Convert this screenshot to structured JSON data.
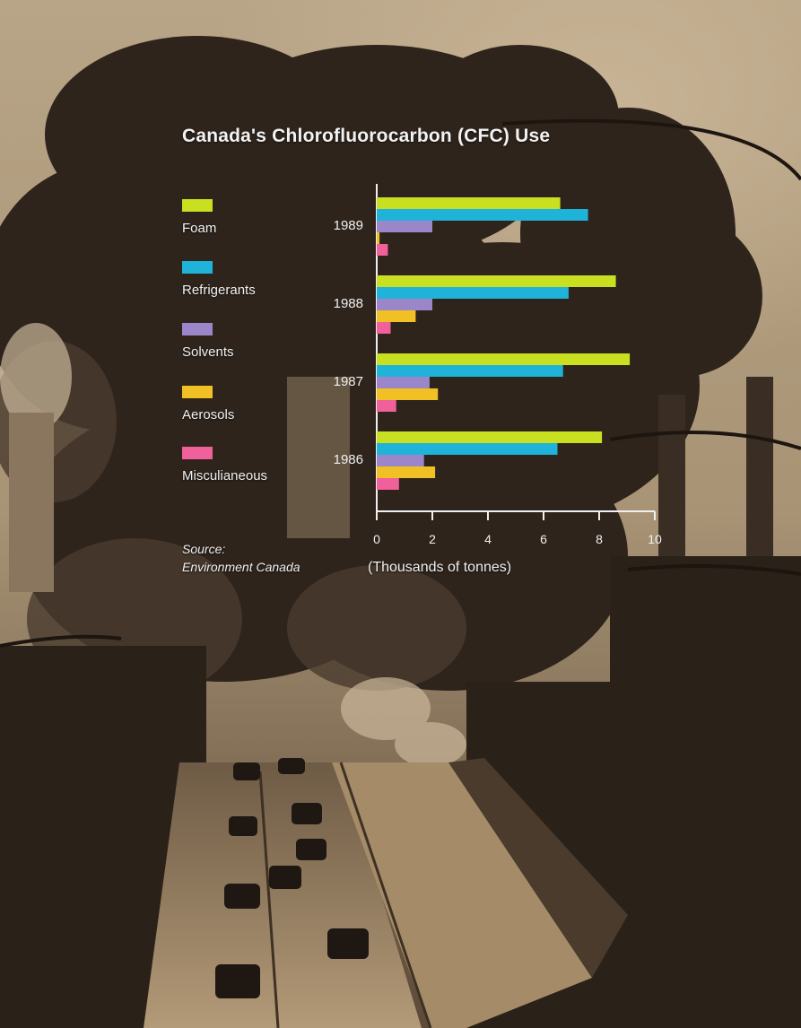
{
  "chart_data": {
    "type": "bar",
    "orientation": "horizontal",
    "title": "Canada's Chlorofluorocarbon (CFC) Use",
    "xlabel": "(Thousands of tonnes)",
    "ylabel": "",
    "xlim": [
      0,
      10
    ],
    "x_ticks": [
      "0",
      "2",
      "4",
      "6",
      "8",
      "10"
    ],
    "categories": [
      "1989",
      "1988",
      "1987",
      "1986"
    ],
    "series": [
      {
        "name": "Foam",
        "color": "#c9e021",
        "values": [
          6.6,
          8.6,
          9.1,
          8.1
        ]
      },
      {
        "name": "Refrigerants",
        "color": "#1fb3d9",
        "values": [
          7.6,
          6.9,
          6.7,
          6.5
        ]
      },
      {
        "name": "Solvents",
        "color": "#9b86c9",
        "values": [
          2.0,
          2.0,
          1.9,
          1.7
        ]
      },
      {
        "name": "Aerosols",
        "color": "#f0c024",
        "values": [
          0.1,
          1.4,
          2.2,
          2.1
        ]
      },
      {
        "name": "Misculianeous",
        "color": "#f0609a",
        "values": [
          0.4,
          0.5,
          0.7,
          0.8
        ]
      }
    ],
    "legend_position": "left",
    "grid": false,
    "source_label": "Source:",
    "source_name": "Environment Canada"
  },
  "background": {
    "icon": "smokestack-photo-icon"
  }
}
